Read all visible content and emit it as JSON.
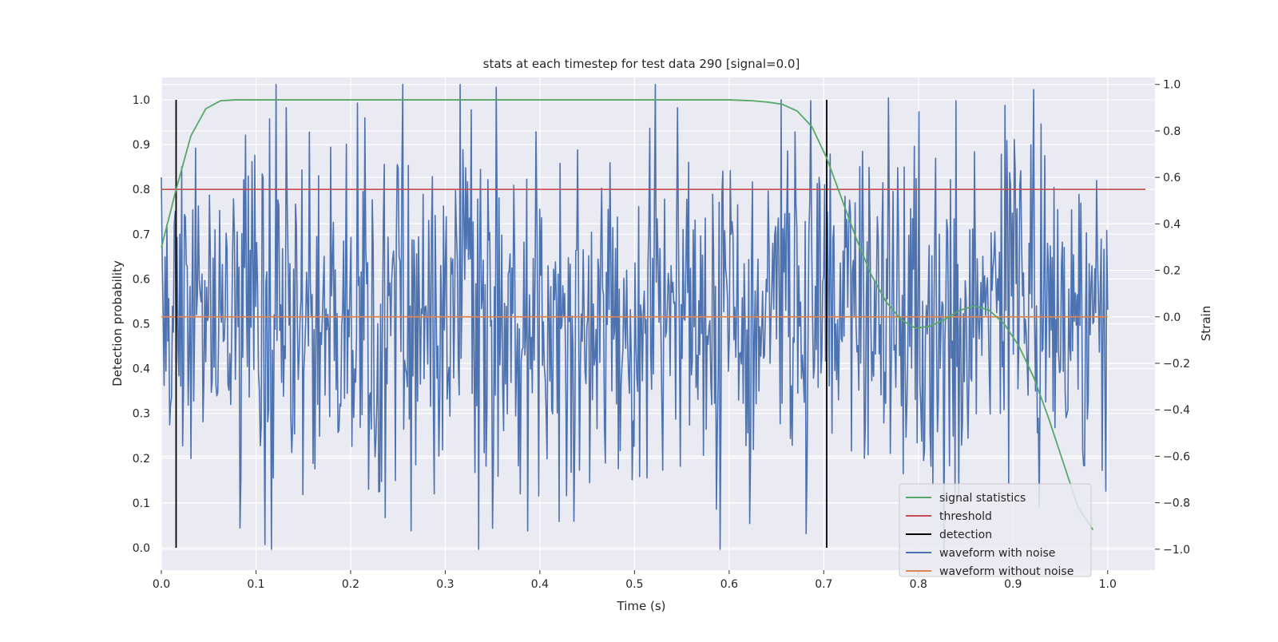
{
  "chart_data": {
    "type": "line",
    "title": "stats at each timestep for test data 290 [signal=0.0]",
    "xlabel": "Time (s)",
    "ylabel": "Detection probability",
    "y2label": "Strain",
    "xlim": [
      0.0,
      1.05
    ],
    "ylim": [
      -0.05,
      1.05
    ],
    "y2lim": [
      -1.09,
      1.03
    ],
    "xticks": [
      "0.0",
      "0.1",
      "0.2",
      "0.3",
      "0.4",
      "0.5",
      "0.6",
      "0.7",
      "0.8",
      "0.9",
      "1.0"
    ],
    "yticks": [
      "0.0",
      "0.1",
      "0.2",
      "0.3",
      "0.4",
      "0.5",
      "0.6",
      "0.7",
      "0.8",
      "0.9",
      "1.0"
    ],
    "y2ticks": [
      "−1.0",
      "−0.8",
      "−0.6",
      "−0.4",
      "−0.2",
      "0.0",
      "0.2",
      "0.4",
      "0.6",
      "0.8",
      "1.0"
    ],
    "grid": true,
    "legend_position": "lower-right",
    "colors": {
      "background": "#eaeaf2",
      "grid": "#ffffff",
      "signal_statistics": "#55a868",
      "threshold": "#c44e52",
      "detection": "#000000",
      "waveform_noise": "#4c72b0",
      "waveform_clean": "#dd8452"
    },
    "series": [
      {
        "name": "signal statistics",
        "axis": "left",
        "x": [
          0.0,
          0.0156,
          0.0313,
          0.0469,
          0.0625,
          0.0781,
          0.0938,
          0.2,
          0.3,
          0.4,
          0.5,
          0.6,
          0.625,
          0.6406,
          0.6563,
          0.6719,
          0.6875,
          0.7031,
          0.7188,
          0.7344,
          0.75,
          0.7656,
          0.7813,
          0.7969,
          0.8125,
          0.8281,
          0.8438,
          0.8594,
          0.875,
          0.8906,
          0.9063,
          0.9219,
          0.9375,
          0.9531,
          0.9688,
          0.9844
        ],
        "y": [
          0.67,
          0.8,
          0.92,
          0.98,
          0.998,
          1.0,
          1.0,
          1.0,
          1.0,
          1.0,
          1.0,
          1.0,
          0.998,
          0.995,
          0.99,
          0.975,
          0.94,
          0.87,
          0.78,
          0.69,
          0.61,
          0.55,
          0.51,
          0.49,
          0.495,
          0.51,
          0.53,
          0.54,
          0.53,
          0.5,
          0.45,
          0.38,
          0.29,
          0.19,
          0.09,
          0.04
        ]
      },
      {
        "name": "threshold",
        "axis": "left",
        "x": [
          0.0,
          1.04
        ],
        "y": [
          0.8,
          0.8
        ]
      },
      {
        "name": "detection",
        "axis": "left",
        "events_x": [
          0.0156,
          0.7031
        ],
        "y_range": [
          0.0,
          1.0
        ]
      },
      {
        "name": "waveform with noise",
        "axis": "right",
        "generated": true,
        "x_range": [
          0.0,
          1.0
        ],
        "samples": 1024,
        "y_range": [
          -1.0,
          1.0
        ],
        "markers": [
          {
            "x": 0.0,
            "y": 0.6
          },
          {
            "x": 0.109,
            "y": -0.98
          },
          {
            "x": 0.132,
            "y": 0.9
          },
          {
            "x": 0.207,
            "y": 0.92
          },
          {
            "x": 0.35,
            "y": -0.91
          },
          {
            "x": 0.436,
            "y": -0.88
          },
          {
            "x": 0.545,
            "y": 0.9
          },
          {
            "x": 0.59,
            "y": -1.0
          },
          {
            "x": 0.686,
            "y": 0.93
          },
          {
            "x": 0.93,
            "y": 0.83
          },
          {
            "x": 0.998,
            "y": -0.75
          }
        ]
      },
      {
        "name": "waveform without noise",
        "axis": "right",
        "x": [
          0.0,
          1.0
        ],
        "y": [
          0.0,
          0.0
        ]
      }
    ],
    "legend": [
      {
        "label": "signal statistics",
        "color": "#55a868"
      },
      {
        "label": "threshold",
        "color": "#c44e52"
      },
      {
        "label": "detection",
        "color": "#000000"
      },
      {
        "label": "waveform with noise",
        "color": "#4c72b0"
      },
      {
        "label": "waveform without noise",
        "color": "#dd8452"
      }
    ]
  }
}
